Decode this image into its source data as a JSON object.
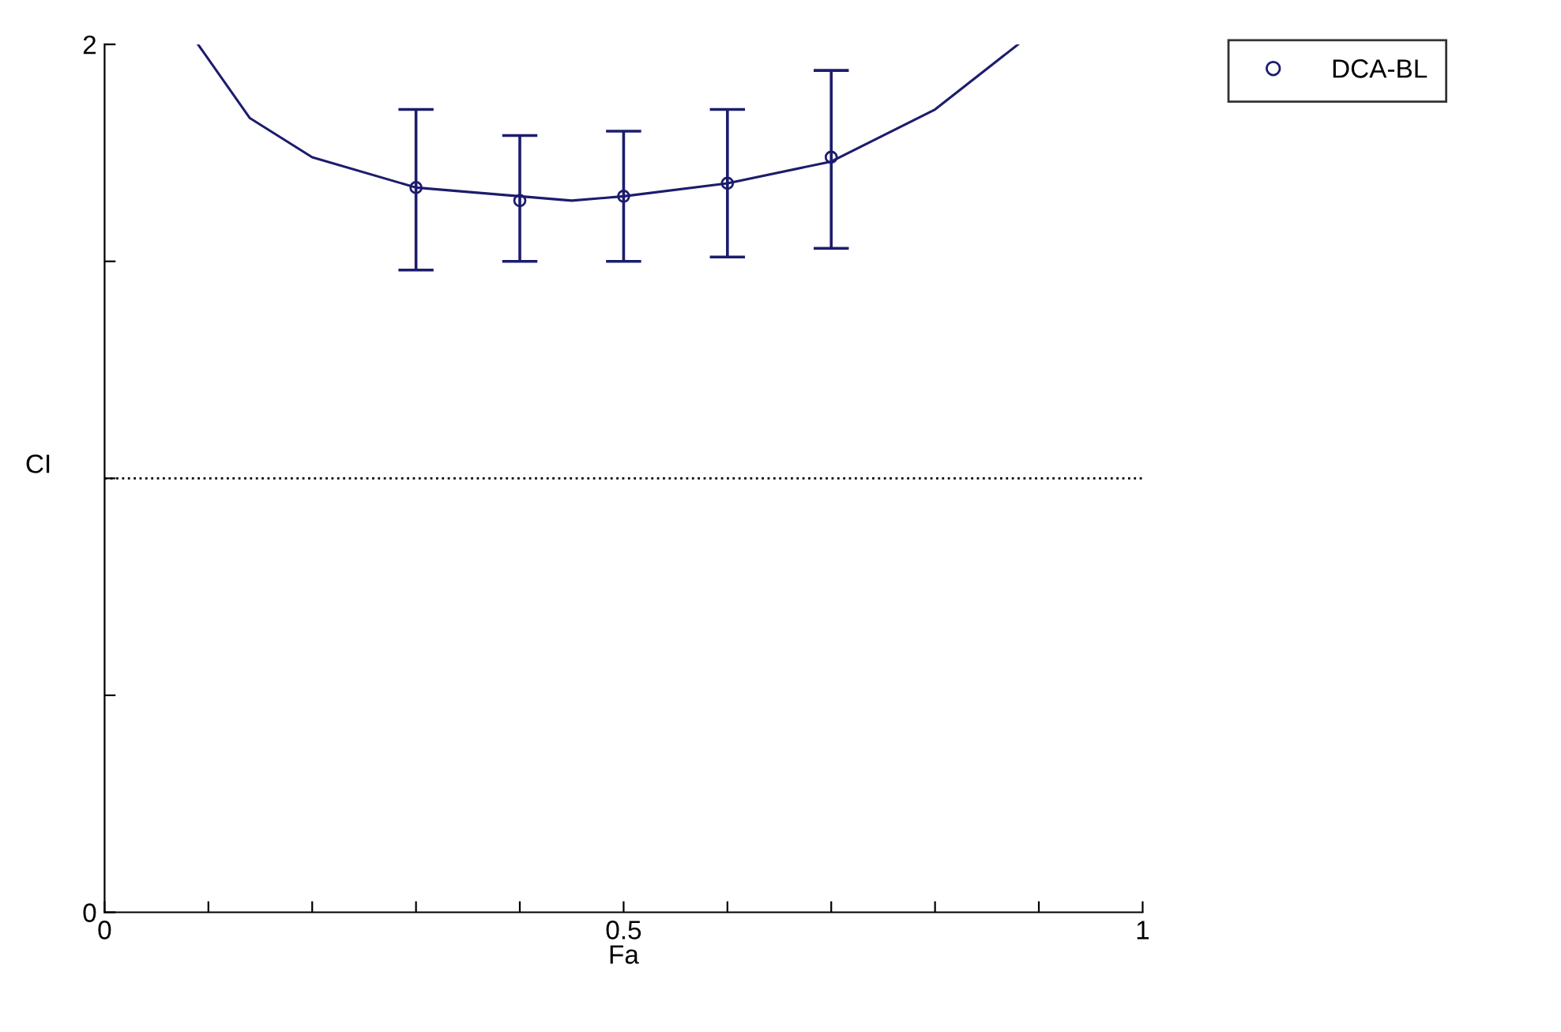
{
  "chart_data": {
    "type": "scatter",
    "xlabel": "Fa",
    "ylabel": "CI",
    "xlim": [
      0,
      1
    ],
    "ylim": [
      0,
      2
    ],
    "xticks": [
      0,
      {
        "value": 0.1,
        "label": null
      },
      {
        "value": 0.2,
        "label": null
      },
      {
        "value": 0.3,
        "label": null
      },
      {
        "value": 0.4,
        "label": null
      },
      0.5,
      {
        "value": 0.6,
        "label": null
      },
      {
        "value": 0.7,
        "label": null
      },
      {
        "value": 0.8,
        "label": null
      },
      {
        "value": 0.9,
        "label": null
      },
      1
    ],
    "yticks": [
      0,
      {
        "value": 0.5,
        "label": null
      },
      {
        "value": 1,
        "label": null
      },
      {
        "value": 1.5,
        "label": null
      },
      2
    ],
    "series": [
      {
        "name": "DCA-BL",
        "color": "#1c1c6e",
        "marker": "circle",
        "x": [
          0.3,
          0.4,
          0.5,
          0.6,
          0.7
        ],
        "values": [
          1.67,
          1.64,
          1.65,
          1.68,
          1.74
        ],
        "errors": [
          [
            1.48,
            1.85
          ],
          [
            1.5,
            1.79
          ],
          [
            1.5,
            1.8
          ],
          [
            1.51,
            1.85
          ],
          [
            1.53,
            1.94
          ]
        ]
      },
      {
        "type": "line",
        "color": "#1c1c6e",
        "marker": "none",
        "line_style": "solid",
        "x": [
          0.09,
          0.14,
          0.2,
          0.3,
          0.4,
          0.45,
          0.5,
          0.6,
          0.7,
          0.8,
          0.88
        ],
        "values": [
          2.0,
          1.83,
          1.74,
          1.67,
          1.65,
          1.64,
          1.65,
          1.68,
          1.73,
          1.85,
          2.0
        ]
      }
    ],
    "ref_lines": [
      {
        "axis": "y",
        "value": 1,
        "color": "#000000",
        "line_style": "dotted"
      }
    ],
    "legend": "top right",
    "grid": false
  }
}
